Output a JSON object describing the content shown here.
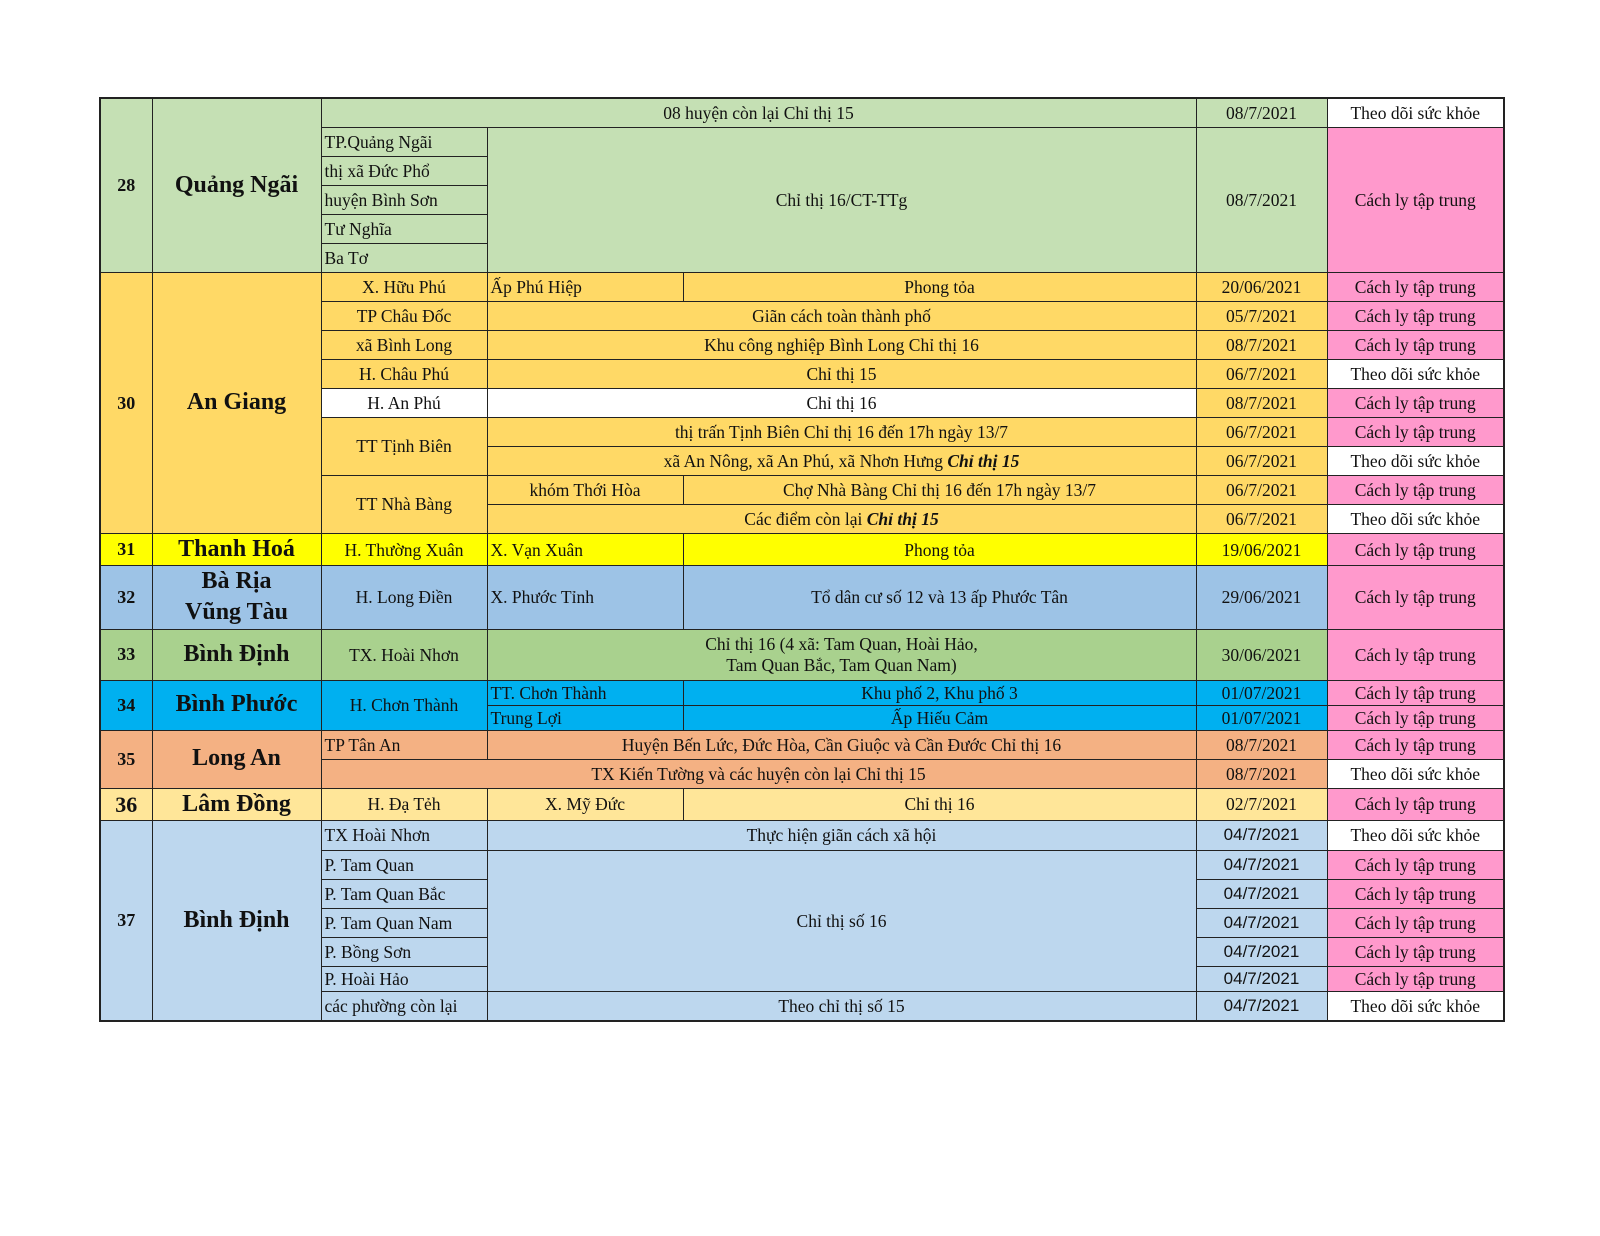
{
  "colors": {
    "quang_ngai": "#c5e0b4",
    "an_giang": "#ffd966",
    "thanh_hoa": "#ffff00",
    "ba_ria": "#9dc3e6",
    "binh_dinh_33": "#a9d18e",
    "binh_phuoc": "#00b0f0",
    "long_an": "#f4b183",
    "lam_dong": "#ffe699",
    "binh_dinh_37": "#bdd7ee",
    "quarantine": "#ff99cc",
    "monitoring": "#ffffff"
  },
  "table": {
    "groups": [
      {
        "stt": "28",
        "province": "Quảng Ngãi",
        "rows": [
          {
            "measure": "08 huyện còn lại Chỉ thị 15",
            "date": "08/7/2021",
            "status": "Theo dõi sức khỏe"
          },
          {
            "district": "TP.Quảng Ngãi",
            "measure": "Chỉ thị 16/CT-TTg",
            "date": "08/7/2021",
            "status": "Cách ly tập trung"
          },
          {
            "district": "thị xã Đức Phổ"
          },
          {
            "district": "huyện Bình Sơn"
          },
          {
            "district": "Tư Nghĩa"
          },
          {
            "district": "Ba Tơ"
          }
        ]
      },
      {
        "stt": "30",
        "province": "An Giang",
        "rows": [
          {
            "district": "X. Hữu Phú",
            "commune": "Ấp Phú Hiệp",
            "measure": "Phong tỏa",
            "date": "20/06/2021",
            "status": "Cách ly tập trung"
          },
          {
            "district": "TP Châu Đốc",
            "measure": "Giãn cách toàn thành phố",
            "date": "05/7/2021",
            "status": "Cách ly tập trung"
          },
          {
            "district": "xã Bình Long",
            "measure": "Khu công nghiệp Bình Long Chỉ thị 16",
            "date": "08/7/2021",
            "status": "Cách ly tập trung"
          },
          {
            "district": "H. Châu Phú",
            "measure": "Chỉ thị 15",
            "date": "06/7/2021",
            "status": "Theo dõi sức khỏe"
          },
          {
            "district": "H. An Phú",
            "measure": "Chỉ thị 16",
            "date": "08/7/2021",
            "status": "Cách ly tập trung"
          },
          {
            "district": "TT Tịnh Biên",
            "measure": "thị trấn Tịnh Biên Chỉ thị 16 đến 17h ngày 13/7",
            "date": "06/7/2021",
            "status": "Cách ly tập trung"
          },
          {
            "measure": "xã An Nông, xã An Phú, xã Nhơn Hưng ",
            "measure_emph": "Chỉ thị 15",
            "date": "06/7/2021",
            "status": "Theo dõi sức khỏe"
          },
          {
            "district": "TT Nhà Bàng",
            "commune": "khóm Thới Hòa",
            "measure": "Chợ Nhà Bàng Chỉ thị 16 đến 17h ngày 13/7",
            "date": "06/7/2021",
            "status": "Cách ly tập trung"
          },
          {
            "measure": "Các điểm còn lại ",
            "measure_emph": "Chỉ thị 15",
            "date": "06/7/2021",
            "status": "Theo dõi sức khỏe"
          }
        ]
      },
      {
        "stt": "31",
        "province": "Thanh Hoá",
        "rows": [
          {
            "district": "H. Thường Xuân",
            "commune": "X. Vạn Xuân",
            "measure": "Phong tỏa",
            "date": "19/06/2021",
            "status": "Cách ly tập trung"
          }
        ]
      },
      {
        "stt": "32",
        "province": "Bà Rịa\nVũng Tàu",
        "rows": [
          {
            "district": "H. Long Điền",
            "commune": "X. Phước Tỉnh",
            "measure": "Tổ dân cư số 12 và 13 ấp Phước Tân",
            "date": "29/06/2021",
            "status": "Cách ly tập trung"
          }
        ]
      },
      {
        "stt": "33",
        "province": "Bình Định",
        "rows": [
          {
            "district": "TX. Hoài Nhơn",
            "measure": "Chỉ thị 16 (4 xã: Tam Quan, Hoài Hảo,\nTam Quan Bắc, Tam Quan Nam)",
            "date": "30/06/2021",
            "status": "Cách ly tập trung"
          }
        ]
      },
      {
        "stt": "34",
        "province": "Bình Phước",
        "rows": [
          {
            "district": "H. Chơn Thành",
            "commune": "TT. Chơn Thành",
            "measure": "Khu phố 2, Khu phố 3",
            "date": "01/07/2021",
            "status": "Cách ly tập trung"
          },
          {
            "commune": "Trung Lợi",
            "measure": "Ấp Hiếu Cảm",
            "date": "01/07/2021",
            "status": "Cách ly tập trung"
          }
        ]
      },
      {
        "stt": "35",
        "province": "Long An",
        "rows": [
          {
            "district": "TP Tân An",
            "measure": "Huyện Bến Lức, Đức Hòa, Cần Giuộc và Cần Đước Chỉ thị 16",
            "date": "08/7/2021",
            "status": "Cách ly tập trung"
          },
          {
            "measure": "TX Kiến Tường và các huyện còn lại Chỉ thị 15",
            "date": "08/7/2021",
            "status": "Theo dõi sức khỏe"
          }
        ]
      },
      {
        "stt": "36",
        "province": "Lâm Đồng",
        "rows": [
          {
            "district": "H. Đạ Tẻh",
            "commune": "X. Mỹ Đức",
            "measure": "Chỉ thị 16",
            "date": "02/7/2021",
            "status": "Cách ly tập trung"
          }
        ]
      },
      {
        "stt": "37",
        "province": "Bình Định",
        "rows": [
          {
            "district": "TX Hoài Nhơn",
            "measure": "Thực hiện giãn cách xã hội",
            "date": "04/7/2021",
            "status": "Theo dõi sức khỏe"
          },
          {
            "district": "P. Tam Quan",
            "measure": "Chỉ thị số 16",
            "date": "04/7/2021",
            "status": "Cách ly tập trung"
          },
          {
            "district": "P. Tam Quan Bắc",
            "date": "04/7/2021",
            "status": "Cách ly tập trung"
          },
          {
            "district": "P. Tam Quan Nam",
            "date": "04/7/2021",
            "status": "Cách ly tập trung"
          },
          {
            "district": "P. Bồng Sơn",
            "date": "04/7/2021",
            "status": "Cách ly tập trung"
          },
          {
            "district": "P. Hoài Hảo",
            "date": "04/7/2021",
            "status": "Cách ly tập trung"
          },
          {
            "district": "các phường còn lại",
            "measure": "Theo chỉ thị số 15",
            "date": "04/7/2021",
            "status": "Theo dõi sức khỏe"
          }
        ]
      }
    ]
  }
}
